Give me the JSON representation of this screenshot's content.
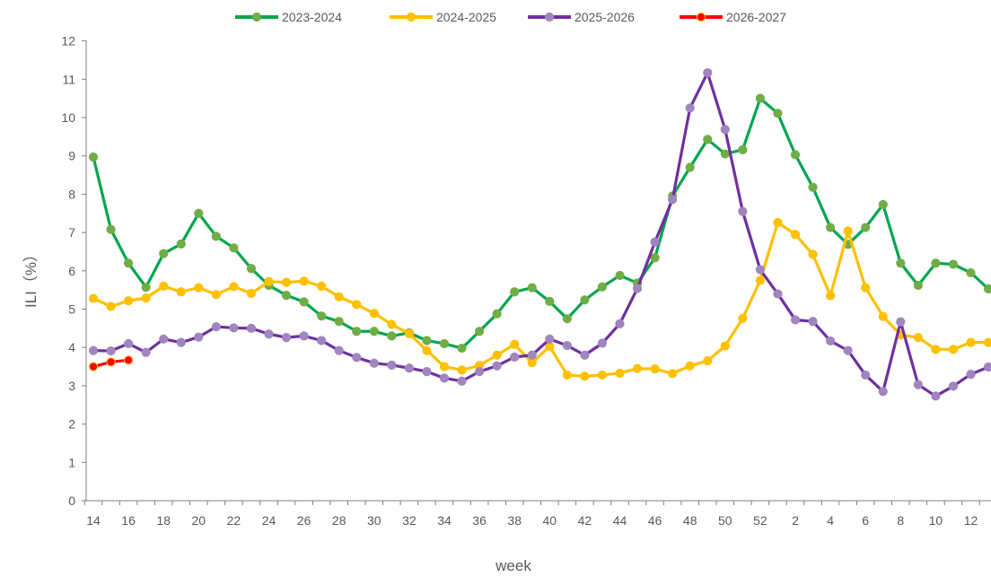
{
  "chart_data": {
    "type": "line",
    "xlabel": "week",
    "ylabel": "ILI（%）",
    "ylim": [
      0,
      12
    ],
    "yticks": [
      0,
      1,
      2,
      3,
      4,
      5,
      6,
      7,
      8,
      9,
      10,
      11,
      12
    ],
    "grid": false,
    "legend_position": "top",
    "weeks": [
      14,
      15,
      16,
      17,
      18,
      19,
      20,
      21,
      22,
      23,
      24,
      25,
      26,
      27,
      28,
      29,
      30,
      31,
      32,
      33,
      34,
      35,
      36,
      37,
      38,
      39,
      40,
      41,
      42,
      43,
      44,
      45,
      46,
      47,
      48,
      49,
      50,
      51,
      52,
      1,
      2,
      3,
      4,
      5,
      6,
      7,
      8,
      9,
      10,
      11,
      12,
      13
    ],
    "xtick_labels": [
      "14",
      "16",
      "18",
      "20",
      "22",
      "24",
      "26",
      "28",
      "30",
      "32",
      "34",
      "36",
      "38",
      "40",
      "42",
      "44",
      "46",
      "48",
      "50",
      "52",
      "2",
      "4",
      "6",
      "8",
      "10",
      "12"
    ],
    "series": [
      {
        "name": "2023-2024",
        "color": "#00a650",
        "marker_color": "#70ad47",
        "values": [
          8.97,
          7.08,
          6.2,
          5.57,
          6.45,
          6.7,
          7.5,
          6.9,
          6.6,
          6.06,
          5.62,
          5.36,
          5.19,
          4.82,
          4.68,
          4.42,
          4.42,
          4.3,
          4.38,
          4.18,
          4.1,
          3.98,
          4.42,
          4.88,
          5.45,
          5.56,
          5.2,
          4.75,
          5.24,
          5.58,
          5.88,
          5.68,
          6.34,
          7.95,
          8.7,
          9.43,
          9.05,
          9.16,
          10.5,
          10.11,
          9.03,
          8.18,
          7.13,
          6.69,
          7.13,
          7.73,
          6.2,
          5.62,
          6.2,
          6.17,
          5.95,
          5.53
        ]
      },
      {
        "name": "2024-2025",
        "color": "#ffc000",
        "marker_color": "#ffc000",
        "values": [
          5.28,
          5.07,
          5.22,
          5.29,
          5.6,
          5.45,
          5.56,
          5.38,
          5.59,
          5.41,
          5.72,
          5.7,
          5.73,
          5.6,
          5.32,
          5.12,
          4.89,
          4.6,
          4.36,
          3.92,
          3.5,
          3.41,
          3.53,
          3.8,
          4.08,
          3.6,
          4.03,
          3.28,
          3.25,
          3.28,
          3.33,
          3.45,
          3.44,
          3.32,
          3.52,
          3.65,
          4.04,
          4.76,
          5.75,
          7.26,
          6.95,
          6.43,
          5.35,
          7.04,
          5.56,
          4.81,
          4.33,
          4.26,
          3.95,
          3.95,
          4.13,
          4.13
        ]
      },
      {
        "name": "2025-2026",
        "color": "#7030a0",
        "marker_color": "#a085bf",
        "values": [
          3.92,
          3.91,
          4.1,
          3.87,
          4.22,
          4.13,
          4.27,
          4.54,
          4.51,
          4.5,
          4.35,
          4.26,
          4.3,
          4.18,
          3.92,
          3.74,
          3.59,
          3.54,
          3.46,
          3.37,
          3.2,
          3.12,
          3.37,
          3.52,
          3.75,
          3.8,
          4.22,
          4.05,
          3.8,
          4.11,
          4.62,
          5.54,
          6.75,
          7.86,
          10.25,
          11.17,
          9.69,
          7.55,
          6.03,
          5.4,
          4.72,
          4.68,
          4.17,
          3.92,
          3.28,
          2.85,
          4.67,
          3.03,
          2.73,
          2.99,
          3.3,
          3.49
        ]
      },
      {
        "name": "2026-2027",
        "color": "#ff0000",
        "marker_color": "#ff0000",
        "marker_edge": "#ffc000",
        "values": [
          3.5,
          3.62,
          3.67
        ]
      }
    ]
  }
}
